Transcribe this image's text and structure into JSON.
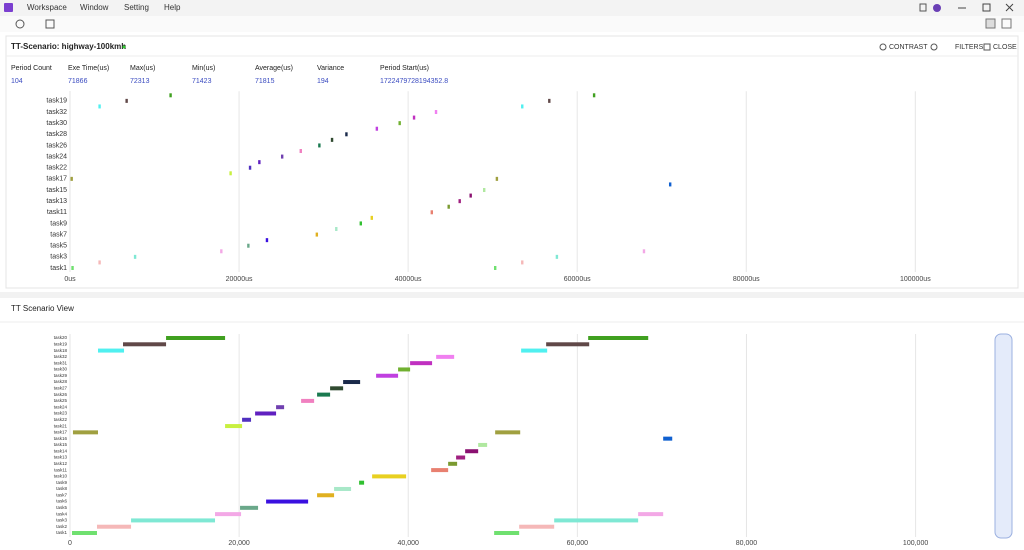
{
  "menu": [
    "Workspace",
    "Window",
    "Setting",
    "Help"
  ],
  "panel": {
    "title": "TT-Scenario: highway-100kmh",
    "buttons": [
      "CONTRAST",
      "FILTERS",
      "CLOSE"
    ]
  },
  "stats": {
    "headers": [
      "Period Count",
      "Exe Time(us)",
      "Max(us)",
      "Min(us)",
      "Average(us)",
      "Variance",
      "Period Start(us)"
    ],
    "values": [
      104,
      71866,
      72313,
      71423,
      71815,
      194,
      "1722479728194352.8"
    ]
  },
  "view_title": "TT Scenario View",
  "chart_data": [
    {
      "type": "timeline-marks",
      "xlim": [
        0,
        111200
      ],
      "xticks": [
        {
          "value": 0,
          "label": "0us"
        },
        {
          "value": 20000,
          "label": "20000us"
        },
        {
          "value": 40000,
          "label": "40000us"
        },
        {
          "value": 60000,
          "label": "60000us"
        },
        {
          "value": 80000,
          "label": "80000us"
        },
        {
          "value": 100000,
          "label": "100000us"
        }
      ],
      "rows": [
        {
          "label": "task1",
          "color": "#6fe06f",
          "values": [
            300,
            50300
          ]
        },
        {
          "label": null,
          "color": "#f5b8b8",
          "values": [
            3500,
            53500
          ]
        },
        {
          "label": "task3",
          "color": "#7fe8d4",
          "values": [
            7700,
            57600
          ]
        },
        {
          "label": null,
          "color": "#f3a8e6",
          "values": [
            17900,
            67900
          ]
        },
        {
          "label": "task5",
          "color": "#6aa88a",
          "values": [
            21100
          ]
        },
        {
          "label": null,
          "color": "#3a10e0",
          "values": [
            23300
          ]
        },
        {
          "label": "task7",
          "color": "#e0b020",
          "values": [
            29200
          ]
        },
        {
          "label": null,
          "color": "#a8e8c8",
          "values": [
            31500
          ]
        },
        {
          "label": "task9",
          "color": "#30c030",
          "values": [
            34400
          ]
        },
        {
          "label": null,
          "color": "#e8d020",
          "values": [
            35700
          ]
        },
        {
          "label": "task11",
          "color": "#e88070",
          "values": [
            42800
          ]
        },
        {
          "label": null,
          "color": "#7a9a30",
          "values": [
            44800
          ]
        },
        {
          "label": "task13",
          "color": "#a02080",
          "values": [
            46100
          ]
        },
        {
          "label": null,
          "color": "#8a1070",
          "values": [
            47400
          ]
        },
        {
          "label": "task15",
          "color": "#b0e8a0",
          "values": [
            49000
          ]
        },
        {
          "label": null,
          "color": "#1060d0",
          "values": [
            71000
          ]
        },
        {
          "label": "task17",
          "color": "#a0a040",
          "values": [
            200,
            50500
          ]
        },
        {
          "label": null,
          "color": "#c8f040",
          "values": [
            19000
          ]
        },
        {
          "label": "task22",
          "color": "#5030c0",
          "values": [
            21300
          ]
        },
        {
          "label": null,
          "color": "#6020c0",
          "values": [
            22400
          ]
        },
        {
          "label": "task24",
          "color": "#7040b0",
          "values": [
            25100
          ]
        },
        {
          "label": null,
          "color": "#f080c0",
          "values": [
            27300
          ]
        },
        {
          "label": "task26",
          "color": "#1a7a50",
          "values": [
            29500
          ]
        },
        {
          "label": null,
          "color": "#304a30",
          "values": [
            31000
          ]
        },
        {
          "label": "task28",
          "color": "#1a2a4a",
          "values": [
            32700
          ]
        },
        {
          "label": null,
          "color": "#c040e0",
          "values": [
            36300
          ]
        },
        {
          "label": "task30",
          "color": "#70b030",
          "values": [
            39000
          ]
        },
        {
          "label": null,
          "color": "#c030c0",
          "values": [
            40700
          ]
        },
        {
          "label": "task32",
          "color": "#f080f0",
          "values": [
            43300
          ]
        },
        {
          "label": null,
          "color": "#50f0f0",
          "values": [
            3500,
            53500
          ]
        },
        {
          "label": "task19",
          "color": "#604848",
          "values": [
            6700,
            56700
          ]
        },
        {
          "label": null,
          "color": "#40a020",
          "values": [
            11900,
            62000
          ]
        }
      ]
    },
    {
      "type": "gantt",
      "xlim": [
        0,
        108800
      ],
      "xticks": [
        0,
        {
          "value": 20000,
          "label": "20,000"
        },
        {
          "value": 40000,
          "label": "40,000"
        },
        {
          "value": 60000,
          "label": "60,000"
        },
        {
          "value": 80000,
          "label": "80,000"
        },
        {
          "value": 100000,
          "label": "100,000"
        }
      ],
      "rows": [
        {
          "label": "task1",
          "color": "#6fe06f",
          "spans": [
            [
              240,
              3190
            ],
            [
              50160,
              53120
            ]
          ]
        },
        {
          "label": "task2",
          "color": "#f5b8b8",
          "spans": [
            [
              3190,
              7220
            ],
            [
              53120,
              57260
            ]
          ]
        },
        {
          "label": "task3",
          "color": "#7fe8d4",
          "spans": [
            [
              7220,
              17150
            ],
            [
              57260,
              67190
            ]
          ]
        },
        {
          "label": "task4",
          "color": "#f3a8e6",
          "spans": [
            [
              17150,
              20230
            ],
            [
              67190,
              70150
            ]
          ]
        },
        {
          "label": "task5",
          "color": "#6aa88a",
          "spans": [
            [
              20110,
              22240
            ]
          ]
        },
        {
          "label": "task6",
          "color": "#3a10e0",
          "spans": [
            [
              23190,
              28160
            ]
          ]
        },
        {
          "label": "task7",
          "color": "#e0b020",
          "spans": [
            [
              29220,
              31230
            ]
          ]
        },
        {
          "label": "task8",
          "color": "#a8e8c8",
          "spans": [
            [
              31230,
              33240
            ]
          ]
        },
        {
          "label": "task9",
          "color": "#30c030",
          "spans": [
            [
              34190,
              34780
            ]
          ]
        },
        {
          "label": "task10",
          "color": "#e8d020",
          "spans": [
            [
              35730,
              39750
            ]
          ]
        },
        {
          "label": "task11",
          "color": "#e88070",
          "spans": [
            [
              42710,
              44720
            ]
          ]
        },
        {
          "label": "task12",
          "color": "#7a9a30",
          "spans": [
            [
              44720,
              45780
            ]
          ]
        },
        {
          "label": "task13",
          "color": "#a02080",
          "spans": [
            [
              45660,
              46730
            ]
          ]
        },
        {
          "label": "task14",
          "color": "#8a1070",
          "spans": [
            [
              46730,
              48270
            ]
          ]
        },
        {
          "label": "task15",
          "color": "#b0e8a0",
          "spans": [
            [
              48270,
              49330
            ]
          ]
        },
        {
          "label": "task16",
          "color": "#1060d0",
          "spans": [
            [
              70150,
              71220
            ]
          ]
        },
        {
          "label": "task17",
          "color": "#a0a040",
          "spans": [
            [
              350,
              3310
            ],
            [
              50280,
              53240
            ]
          ]
        },
        {
          "label": "task21",
          "color": "#c8f040",
          "spans": [
            [
              18340,
              20350
            ]
          ]
        },
        {
          "label": "task22",
          "color": "#5030c0",
          "spans": [
            [
              20350,
              21410
            ]
          ]
        },
        {
          "label": "task23",
          "color": "#6020c0",
          "spans": [
            [
              21890,
              24370
            ]
          ]
        },
        {
          "label": "task24",
          "color": "#7040b0",
          "spans": [
            [
              24370,
              25320
            ]
          ]
        },
        {
          "label": "task25",
          "color": "#f080c0",
          "spans": [
            [
              27330,
              28870
            ]
          ]
        },
        {
          "label": "task26",
          "color": "#1a7a50",
          "spans": [
            [
              29220,
              30760
            ]
          ]
        },
        {
          "label": "task27",
          "color": "#304a30",
          "spans": [
            [
              30760,
              32300
            ]
          ]
        },
        {
          "label": "task28",
          "color": "#1a2a4a",
          "spans": [
            [
              32300,
              34310
            ]
          ]
        },
        {
          "label": "task29",
          "color": "#c040e0",
          "spans": [
            [
              36200,
              38800
            ]
          ]
        },
        {
          "label": "task30",
          "color": "#70b030",
          "spans": [
            [
              38800,
              40220
            ]
          ]
        },
        {
          "label": "task31",
          "color": "#c030c0",
          "spans": [
            [
              40220,
              42820
            ]
          ]
        },
        {
          "label": "task32",
          "color": "#f080f0",
          "spans": [
            [
              43300,
              45430
            ]
          ]
        },
        {
          "label": "task18",
          "color": "#50f0f0",
          "spans": [
            [
              3310,
              6390
            ],
            [
              53350,
              56430
            ]
          ]
        },
        {
          "label": "task19",
          "color": "#604848",
          "spans": [
            [
              6270,
              11360
            ],
            [
              56310,
              61400
            ]
          ]
        },
        {
          "label": "task20",
          "color": "#40a020",
          "spans": [
            [
              11360,
              18340
            ],
            [
              61280,
              68380
            ]
          ]
        }
      ]
    }
  ]
}
